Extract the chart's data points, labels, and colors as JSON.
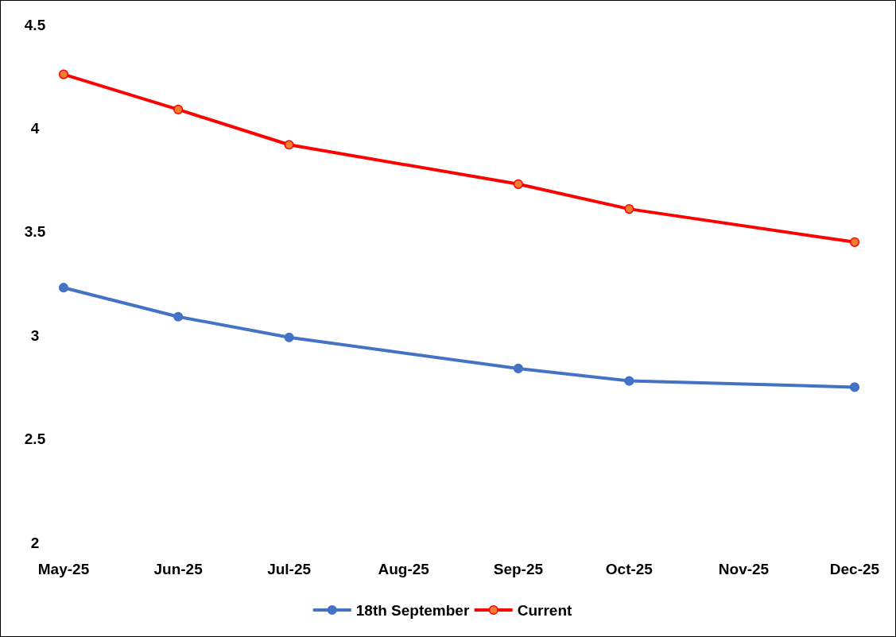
{
  "chart_data": {
    "type": "line",
    "x": [
      "2025-05",
      "2025-06",
      "2025-07",
      "2025-09",
      "2025-10",
      "2025-12"
    ],
    "xlim": [
      "2025-05",
      "2025-12"
    ],
    "xticks": [
      {
        "value": "2025-05",
        "label": "May-25"
      },
      {
        "value": "2025-06",
        "label": "Jun-25"
      },
      {
        "value": "2025-07",
        "label": "Jul-25"
      },
      {
        "value": "2025-08",
        "label": "Aug-25"
      },
      {
        "value": "2025-09",
        "label": "Sep-25"
      },
      {
        "value": "2025-10",
        "label": "Oct-25"
      },
      {
        "value": "2025-11",
        "label": "Nov-25"
      },
      {
        "value": "2025-12",
        "label": "Dec-25"
      }
    ],
    "ylim": [
      2,
      4.5
    ],
    "yticks": [
      2,
      2.5,
      3,
      3.5,
      4,
      4.5
    ],
    "series": [
      {
        "name": "18th September",
        "color": "#4472c4",
        "values": [
          3.23,
          3.09,
          2.99,
          2.84,
          2.78,
          2.75
        ]
      },
      {
        "name": "Current",
        "color": "#ff0000",
        "values": [
          4.26,
          4.09,
          3.92,
          3.73,
          3.61,
          3.45
        ]
      }
    ],
    "marker": "circle",
    "grid": false,
    "legend": "bottom"
  }
}
